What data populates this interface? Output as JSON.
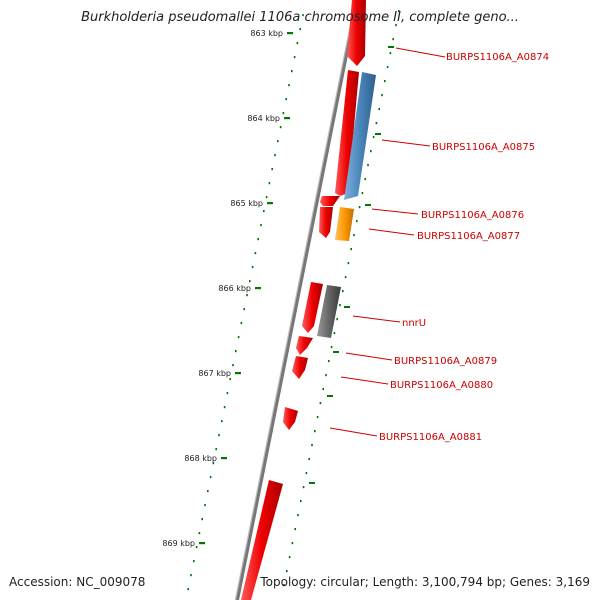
{
  "title": "Burkholderia pseudomallei 1106a chromosome II, complete geno...",
  "accession_text": "Accession: NC_009078",
  "stats_text": "Topology: circular; Length: 3,100,794 bp; Genes: 3,169",
  "colors": {
    "forward_gene": "#ee0000",
    "reverse_gene_blue": "#4a86bb",
    "reverse_gene_orange": "#ff9900",
    "reverse_gene_gray": "#666666",
    "backbone": "#777777",
    "tick_dots": "#007700",
    "label_text": "#cc0000"
  },
  "scale_ticks": [
    "863 kbp",
    "864 kbp",
    "865 kbp",
    "866 kbp",
    "867 kbp",
    "868 kbp",
    "869 kbp"
  ],
  "genes": [
    {
      "name": "",
      "strand": "forward",
      "color_key": "forward_gene"
    },
    {
      "name": "BURPS1106A_A0874",
      "strand": "forward",
      "color_key": "forward_gene"
    },
    {
      "name": "BURPS1106A_A0875",
      "strand": "reverse",
      "color_key": "reverse_gene_blue"
    },
    {
      "name": "BURPS1106A_A0876",
      "strand": "forward",
      "color_key": "forward_gene"
    },
    {
      "name": "BURPS1106A_A0877",
      "strand": "reverse",
      "color_key": "reverse_gene_orange"
    },
    {
      "name": "",
      "strand": "forward",
      "color_key": "forward_gene"
    },
    {
      "name": "nnrU",
      "strand": "reverse",
      "color_key": "reverse_gene_gray"
    },
    {
      "name": "BURPS1106A_A0879",
      "strand": "forward",
      "color_key": "forward_gene"
    },
    {
      "name": "BURPS1106A_A0880",
      "strand": "forward",
      "color_key": "forward_gene"
    },
    {
      "name": "BURPS1106A_A0881",
      "strand": "forward",
      "color_key": "forward_gene"
    },
    {
      "name": "",
      "strand": "forward",
      "color_key": "forward_gene"
    }
  ]
}
